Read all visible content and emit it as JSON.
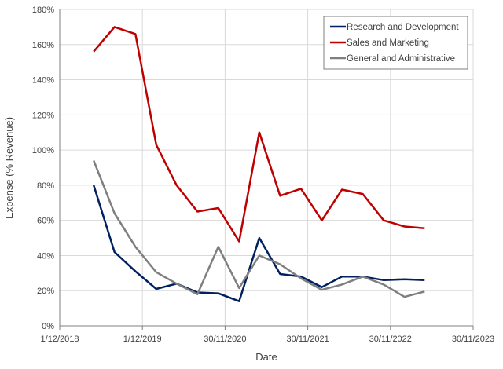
{
  "chart_data": {
    "type": "line",
    "title": "",
    "xlabel": "Date",
    "ylabel": "Expense (% Revenue)",
    "xlim": [
      "2018-12-01",
      "2023-11-30"
    ],
    "ylim": [
      0,
      180
    ],
    "x_ticks": [
      "1/12/2018",
      "1/12/2019",
      "30/11/2020",
      "30/11/2021",
      "30/11/2022",
      "30/11/2023"
    ],
    "x_tick_dates": [
      "2018-12-01",
      "2019-12-01",
      "2020-11-30",
      "2021-11-30",
      "2022-11-30",
      "2023-11-30"
    ],
    "y_ticks": [
      "0%",
      "20%",
      "40%",
      "60%",
      "80%",
      "100%",
      "120%",
      "140%",
      "160%",
      "180%"
    ],
    "grid": true,
    "legend_position": "top-right",
    "x": [
      "2019-04-30",
      "2019-07-31",
      "2019-10-31",
      "2020-01-31",
      "2020-04-30",
      "2020-07-31",
      "2020-10-31",
      "2021-01-31",
      "2021-04-30",
      "2021-07-31",
      "2021-10-31",
      "2022-01-31",
      "2022-04-30",
      "2022-07-31",
      "2022-10-31",
      "2023-01-31",
      "2023-04-30"
    ],
    "series": [
      {
        "name": "Research and Development",
        "color": "#002060",
        "values": [
          80,
          42,
          31,
          21,
          24,
          19,
          18.5,
          14,
          50,
          29.5,
          28,
          22,
          28,
          28,
          26,
          26.5,
          26
        ]
      },
      {
        "name": "Sales and Marketing",
        "color": "#C00000",
        "values": [
          156,
          170,
          166,
          103,
          80,
          65,
          67,
          48,
          110,
          74,
          78,
          60,
          77.5,
          75,
          60,
          56.5,
          55.5
        ]
      },
      {
        "name": "General and Administrative",
        "color": "#7F7F7F",
        "values": [
          94,
          64,
          45,
          30.5,
          24,
          18,
          45,
          21.5,
          40,
          35,
          27,
          20.5,
          23.5,
          28,
          23.5,
          16.5,
          19.5
        ]
      }
    ]
  }
}
